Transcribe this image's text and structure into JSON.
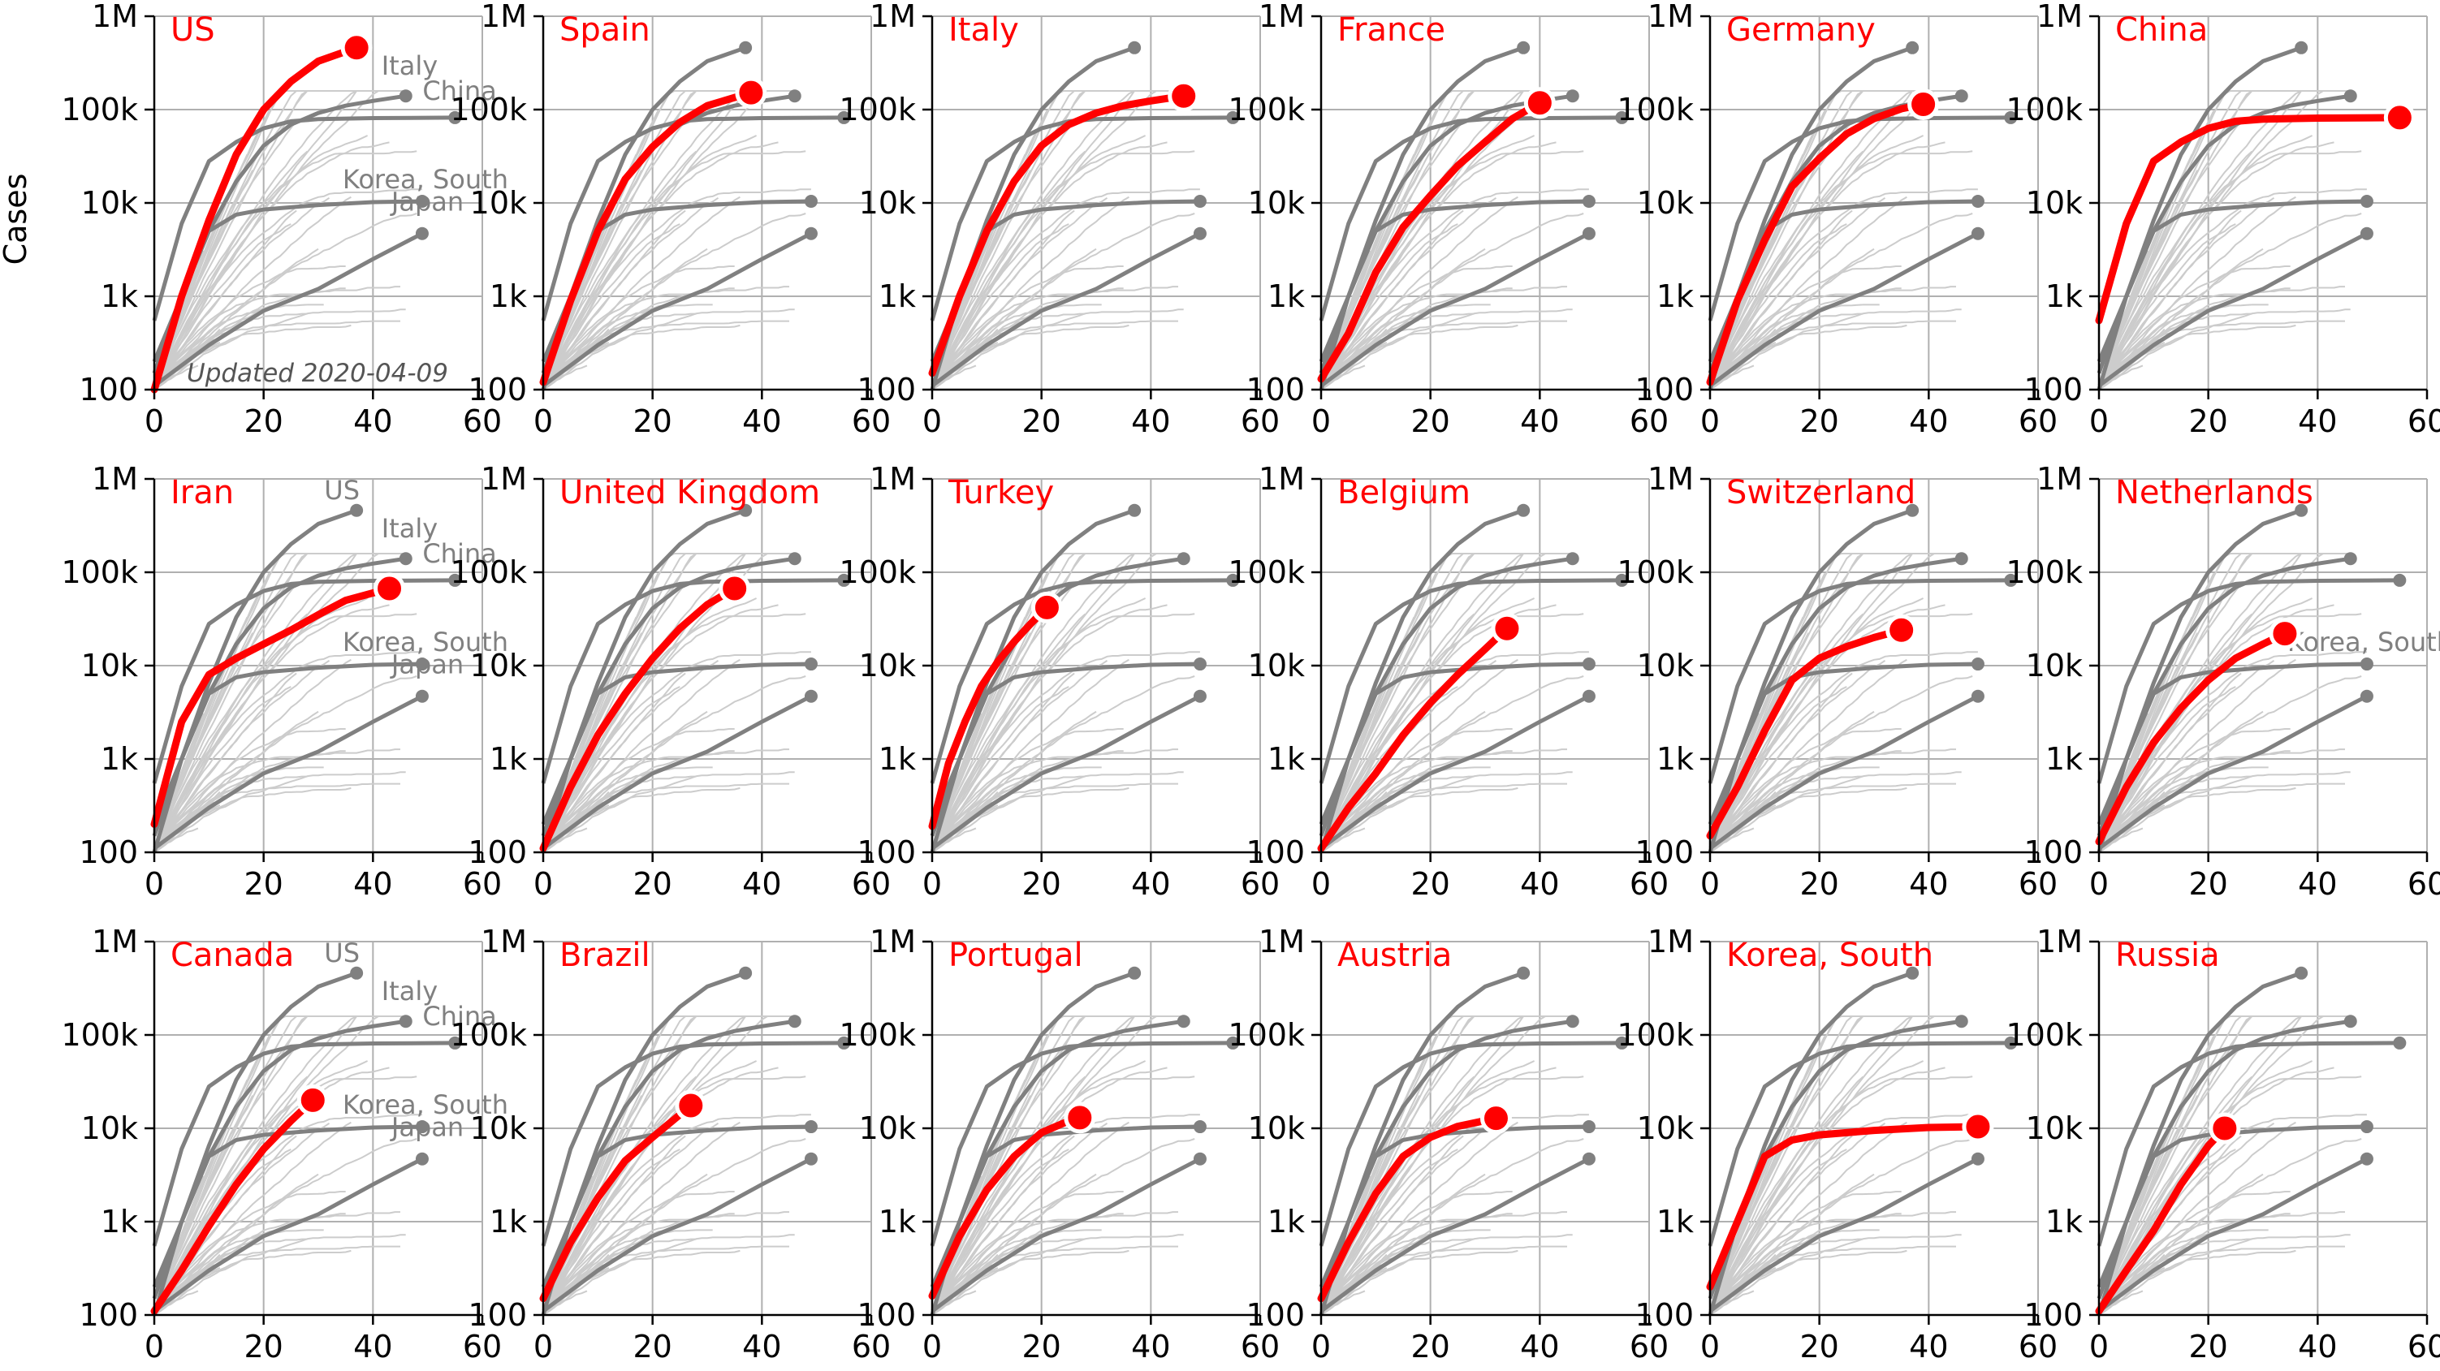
{
  "chart_data": {
    "type": "line",
    "layout": "small-multiples 3x6",
    "ylabel": "Cases",
    "x_ticks": [
      0,
      20,
      40,
      60
    ],
    "xlim": [
      0,
      60
    ],
    "y_scale": "log",
    "ylim": [
      100,
      1000000
    ],
    "y_ticks": [
      100,
      1000,
      10000,
      100000,
      1000000
    ],
    "y_tick_labels": [
      "100",
      "1k",
      "10k",
      "100k",
      "1M"
    ],
    "grid": true,
    "annotation": "Updated 2020-04-09",
    "colors": {
      "highlight": "#ff0000",
      "reference": "#808080",
      "background_series": "#cccccc",
      "grid": "#b0b0b0"
    },
    "reference_series": [
      {
        "name": "US",
        "x": [
          0,
          5,
          10,
          15,
          20,
          25,
          30,
          37
        ],
        "y": [
          100,
          1000,
          6500,
          33000,
          100000,
          200000,
          330000,
          460000
        ]
      },
      {
        "name": "Italy",
        "x": [
          0,
          5,
          10,
          15,
          20,
          25,
          30,
          35,
          40,
          46
        ],
        "y": [
          150,
          1000,
          5000,
          17000,
          41000,
          69000,
          92000,
          110000,
          124000,
          140000
        ]
      },
      {
        "name": "China",
        "x": [
          0,
          5,
          10,
          15,
          20,
          25,
          30,
          40,
          55
        ],
        "y": [
          550,
          6000,
          28000,
          45000,
          63000,
          75000,
          79000,
          81000,
          82000
        ]
      },
      {
        "name": "Korea, South",
        "x": [
          0,
          5,
          10,
          15,
          20,
          30,
          40,
          49
        ],
        "y": [
          200,
          1000,
          5000,
          7500,
          8500,
          9500,
          10200,
          10400
        ]
      },
      {
        "name": "Japan",
        "x": [
          0,
          10,
          20,
          30,
          40,
          49
        ],
        "y": [
          110,
          300,
          700,
          1200,
          2500,
          4700
        ]
      }
    ],
    "panels": [
      {
        "country": "US",
        "labels": [
          "Italy",
          "China",
          "Korea, South",
          "Japan"
        ],
        "x": [
          0,
          5,
          10,
          15,
          20,
          25,
          30,
          37
        ],
        "y": [
          100,
          1000,
          6500,
          33000,
          100000,
          200000,
          330000,
          460000
        ]
      },
      {
        "country": "Spain",
        "x": [
          0,
          5,
          10,
          15,
          20,
          25,
          30,
          38
        ],
        "y": [
          120,
          900,
          5000,
          18000,
          40000,
          73000,
          110000,
          152000
        ]
      },
      {
        "country": "Italy",
        "x": [
          0,
          5,
          10,
          15,
          20,
          25,
          30,
          35,
          40,
          46
        ],
        "y": [
          150,
          1000,
          5000,
          17000,
          41000,
          69000,
          92000,
          110000,
          124000,
          140000
        ]
      },
      {
        "country": "France",
        "x": [
          0,
          5,
          10,
          15,
          20,
          25,
          30,
          35,
          40
        ],
        "y": [
          130,
          400,
          1800,
          5500,
          12000,
          25000,
          45000,
          80000,
          118000
        ]
      },
      {
        "country": "Germany",
        "x": [
          0,
          5,
          10,
          15,
          20,
          25,
          30,
          35,
          39
        ],
        "y": [
          120,
          900,
          4000,
          15000,
          30000,
          55000,
          80000,
          102000,
          114000
        ]
      },
      {
        "country": "China",
        "x": [
          0,
          5,
          10,
          15,
          20,
          25,
          30,
          40,
          55
        ],
        "y": [
          550,
          6000,
          28000,
          45000,
          63000,
          75000,
          79000,
          81000,
          82000
        ]
      },
      {
        "country": "Iran",
        "labels": [
          "US",
          "Italy",
          "China",
          "Korea, South",
          "Japan"
        ],
        "x": [
          0,
          5,
          10,
          15,
          20,
          25,
          30,
          35,
          43
        ],
        "y": [
          200,
          2500,
          8000,
          12000,
          17000,
          24000,
          35000,
          50000,
          67000
        ]
      },
      {
        "country": "United Kingdom",
        "x": [
          0,
          5,
          10,
          15,
          20,
          25,
          30,
          35
        ],
        "y": [
          110,
          500,
          1800,
          5000,
          12000,
          25000,
          45000,
          67000
        ]
      },
      {
        "country": "Turkey",
        "x": [
          0,
          3,
          6,
          9,
          12,
          15,
          18,
          21
        ],
        "y": [
          190,
          900,
          2500,
          6000,
          11000,
          18000,
          28000,
          42000
        ]
      },
      {
        "country": "Belgium",
        "x": [
          0,
          5,
          10,
          15,
          20,
          25,
          30,
          34
        ],
        "y": [
          110,
          300,
          700,
          1800,
          4000,
          8000,
          15000,
          25000
        ]
      },
      {
        "country": "Switzerland",
        "x": [
          0,
          5,
          10,
          15,
          20,
          25,
          30,
          35
        ],
        "y": [
          150,
          500,
          2000,
          7000,
          12000,
          16000,
          20000,
          24000
        ]
      },
      {
        "country": "Netherlands",
        "labels": [
          "Korea, South"
        ],
        "x": [
          0,
          5,
          10,
          15,
          20,
          25,
          30,
          34
        ],
        "y": [
          130,
          500,
          1500,
          3500,
          7000,
          12000,
          17000,
          22000
        ]
      },
      {
        "country": "Canada",
        "labels": [
          "US",
          "Italy",
          "China",
          "Korea, South",
          "Japan"
        ],
        "x": [
          0,
          5,
          10,
          15,
          20,
          25,
          29
        ],
        "y": [
          110,
          300,
          900,
          2500,
          6000,
          12000,
          20000
        ]
      },
      {
        "country": "Brazil",
        "x": [
          0,
          5,
          10,
          15,
          20,
          25,
          27
        ],
        "y": [
          150,
          600,
          1800,
          4500,
          8000,
          14000,
          17500
        ]
      },
      {
        "country": "Portugal",
        "x": [
          0,
          5,
          10,
          15,
          20,
          25,
          27
        ],
        "y": [
          160,
          700,
          2200,
          5000,
          9000,
          12000,
          13000
        ]
      },
      {
        "country": "Austria",
        "x": [
          0,
          5,
          10,
          15,
          20,
          25,
          32
        ],
        "y": [
          150,
          600,
          2000,
          5000,
          8000,
          10500,
          12800
        ]
      },
      {
        "country": "Korea, South",
        "x": [
          0,
          5,
          10,
          15,
          20,
          30,
          40,
          49
        ],
        "y": [
          200,
          1000,
          5000,
          7500,
          8500,
          9500,
          10200,
          10400
        ]
      },
      {
        "country": "Russia",
        "x": [
          0,
          5,
          10,
          15,
          20,
          23
        ],
        "y": [
          110,
          300,
          800,
          2500,
          6500,
          10000
        ]
      }
    ]
  }
}
